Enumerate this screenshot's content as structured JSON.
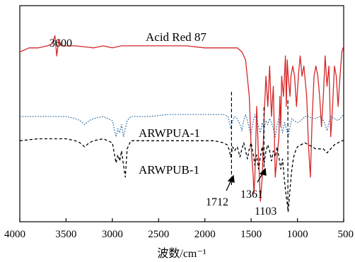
{
  "chart_data": {
    "type": "line",
    "xlabel": "波数/cm⁻¹",
    "xlim": [
      4000,
      500
    ],
    "x_reversed": true,
    "x_ticks": [
      4000,
      3500,
      3000,
      2500,
      2000,
      1500,
      1000,
      500
    ],
    "y_ticks_shown": false,
    "grid": false,
    "series": [
      {
        "name": "Acid Red 87",
        "color": "#d62728",
        "dash": "solid",
        "points": [
          [
            4000,
            82
          ],
          [
            3900,
            84
          ],
          [
            3800,
            84
          ],
          [
            3700,
            85
          ],
          [
            3650,
            86
          ],
          [
            3620,
            90
          ],
          [
            3600,
            80
          ],
          [
            3580,
            88
          ],
          [
            3550,
            85
          ],
          [
            3400,
            85
          ],
          [
            3200,
            84
          ],
          [
            3100,
            85
          ],
          [
            3000,
            84
          ],
          [
            2900,
            85
          ],
          [
            2800,
            85
          ],
          [
            2600,
            85
          ],
          [
            2400,
            85
          ],
          [
            2200,
            85
          ],
          [
            2000,
            84
          ],
          [
            1800,
            84
          ],
          [
            1650,
            84
          ],
          [
            1600,
            82
          ],
          [
            1560,
            78
          ],
          [
            1520,
            60
          ],
          [
            1500,
            35
          ],
          [
            1480,
            22
          ],
          [
            1470,
            12
          ],
          [
            1460,
            20
          ],
          [
            1440,
            55
          ],
          [
            1420,
            30
          ],
          [
            1400,
            8
          ],
          [
            1380,
            20
          ],
          [
            1360,
            50
          ],
          [
            1340,
            70
          ],
          [
            1320,
            55
          ],
          [
            1300,
            75
          ],
          [
            1280,
            50
          ],
          [
            1260,
            65
          ],
          [
            1240,
            20
          ],
          [
            1220,
            30
          ],
          [
            1200,
            40
          ],
          [
            1190,
            60
          ],
          [
            1180,
            45
          ],
          [
            1170,
            70
          ],
          [
            1150,
            60
          ],
          [
            1130,
            80
          ],
          [
            1120,
            55
          ],
          [
            1110,
            78
          ],
          [
            1100,
            70
          ],
          [
            1090,
            65
          ],
          [
            1080,
            60
          ],
          [
            1070,
            70
          ],
          [
            1050,
            75
          ],
          [
            1030,
            70
          ],
          [
            1010,
            55
          ],
          [
            990,
            70
          ],
          [
            970,
            80
          ],
          [
            950,
            70
          ],
          [
            930,
            75
          ],
          [
            900,
            60
          ],
          [
            880,
            35
          ],
          [
            860,
            20
          ],
          [
            840,
            50
          ],
          [
            820,
            70
          ],
          [
            800,
            75
          ],
          [
            780,
            70
          ],
          [
            760,
            60
          ],
          [
            740,
            45
          ],
          [
            720,
            60
          ],
          [
            700,
            80
          ],
          [
            680,
            65
          ],
          [
            660,
            75
          ],
          [
            640,
            40
          ],
          [
            620,
            55
          ],
          [
            600,
            75
          ],
          [
            580,
            70
          ],
          [
            560,
            55
          ],
          [
            540,
            70
          ],
          [
            520,
            82
          ],
          [
            500,
            85
          ]
        ]
      },
      {
        "name": "ARWPUA-1",
        "color": "#2e6ea6",
        "dash": "dotted",
        "points": [
          [
            4000,
            50
          ],
          [
            3800,
            50
          ],
          [
            3600,
            50
          ],
          [
            3500,
            50
          ],
          [
            3400,
            49
          ],
          [
            3350,
            48
          ],
          [
            3300,
            46
          ],
          [
            3250,
            48
          ],
          [
            3200,
            49
          ],
          [
            3100,
            50
          ],
          [
            3050,
            49
          ],
          [
            3000,
            48
          ],
          [
            2980,
            44
          ],
          [
            2960,
            40
          ],
          [
            2940,
            44
          ],
          [
            2920,
            42
          ],
          [
            2900,
            46
          ],
          [
            2880,
            40
          ],
          [
            2860,
            44
          ],
          [
            2840,
            48
          ],
          [
            2800,
            50
          ],
          [
            2600,
            50
          ],
          [
            2400,
            51
          ],
          [
            2200,
            51
          ],
          [
            2000,
            51
          ],
          [
            1900,
            51
          ],
          [
            1800,
            51
          ],
          [
            1750,
            50
          ],
          [
            1720,
            44
          ],
          [
            1700,
            48
          ],
          [
            1680,
            50
          ],
          [
            1650,
            49
          ],
          [
            1620,
            46
          ],
          [
            1600,
            43
          ],
          [
            1580,
            48
          ],
          [
            1560,
            51
          ],
          [
            1540,
            48
          ],
          [
            1520,
            44
          ],
          [
            1500,
            41
          ],
          [
            1480,
            47
          ],
          [
            1460,
            51
          ],
          [
            1440,
            48
          ],
          [
            1420,
            45
          ],
          [
            1400,
            42
          ],
          [
            1380,
            47
          ],
          [
            1360,
            44
          ],
          [
            1340,
            48
          ],
          [
            1320,
            46
          ],
          [
            1300,
            49
          ],
          [
            1280,
            47
          ],
          [
            1260,
            44
          ],
          [
            1240,
            40
          ],
          [
            1220,
            46
          ],
          [
            1200,
            49
          ],
          [
            1180,
            46
          ],
          [
            1160,
            42
          ],
          [
            1140,
            47
          ],
          [
            1120,
            44
          ],
          [
            1100,
            40
          ],
          [
            1080,
            45
          ],
          [
            1060,
            49
          ],
          [
            1040,
            48
          ],
          [
            1000,
            47
          ],
          [
            960,
            48
          ],
          [
            920,
            50
          ],
          [
            880,
            50
          ],
          [
            840,
            49
          ],
          [
            800,
            49
          ],
          [
            760,
            50
          ],
          [
            720,
            48
          ],
          [
            700,
            46
          ],
          [
            680,
            43
          ],
          [
            660,
            47
          ],
          [
            640,
            50
          ],
          [
            600,
            49
          ],
          [
            560,
            48
          ],
          [
            520,
            50
          ],
          [
            500,
            51
          ]
        ]
      },
      {
        "name": "ARWPUB-1",
        "color": "#000000",
        "dash": "dashed",
        "points": [
          [
            4000,
            38
          ],
          [
            3800,
            39
          ],
          [
            3600,
            39
          ],
          [
            3500,
            39
          ],
          [
            3400,
            38
          ],
          [
            3350,
            37
          ],
          [
            3300,
            35
          ],
          [
            3250,
            37
          ],
          [
            3200,
            38
          ],
          [
            3100,
            39
          ],
          [
            3050,
            38
          ],
          [
            3000,
            37
          ],
          [
            2980,
            32
          ],
          [
            2960,
            27
          ],
          [
            2940,
            31
          ],
          [
            2920,
            28
          ],
          [
            2900,
            33
          ],
          [
            2880,
            26
          ],
          [
            2860,
            20
          ],
          [
            2840,
            34
          ],
          [
            2800,
            38
          ],
          [
            2600,
            38
          ],
          [
            2400,
            38
          ],
          [
            2200,
            38
          ],
          [
            2000,
            38
          ],
          [
            1900,
            38
          ],
          [
            1800,
            37
          ],
          [
            1760,
            36
          ],
          [
            1740,
            34
          ],
          [
            1720,
            30
          ],
          [
            1700,
            35
          ],
          [
            1680,
            33
          ],
          [
            1650,
            35
          ],
          [
            1620,
            30
          ],
          [
            1600,
            34
          ],
          [
            1580,
            37
          ],
          [
            1560,
            33
          ],
          [
            1540,
            29
          ],
          [
            1520,
            34
          ],
          [
            1500,
            37
          ],
          [
            1480,
            32
          ],
          [
            1460,
            26
          ],
          [
            1440,
            31
          ],
          [
            1420,
            24
          ],
          [
            1400,
            30
          ],
          [
            1380,
            35
          ],
          [
            1360,
            27
          ],
          [
            1340,
            33
          ],
          [
            1320,
            36
          ],
          [
            1300,
            33
          ],
          [
            1280,
            28
          ],
          [
            1260,
            33
          ],
          [
            1240,
            30
          ],
          [
            1220,
            35
          ],
          [
            1200,
            30
          ],
          [
            1180,
            24
          ],
          [
            1160,
            29
          ],
          [
            1140,
            18
          ],
          [
            1120,
            10
          ],
          [
            1110,
            7
          ],
          [
            1100,
            3
          ],
          [
            1090,
            8
          ],
          [
            1080,
            14
          ],
          [
            1060,
            24
          ],
          [
            1040,
            30
          ],
          [
            1020,
            33
          ],
          [
            1000,
            35
          ],
          [
            960,
            36
          ],
          [
            920,
            37
          ],
          [
            880,
            36
          ],
          [
            840,
            35
          ],
          [
            800,
            34
          ],
          [
            760,
            34
          ],
          [
            720,
            34
          ],
          [
            700,
            33
          ],
          [
            680,
            32
          ],
          [
            660,
            33
          ],
          [
            640,
            34
          ],
          [
            600,
            36
          ],
          [
            560,
            37
          ],
          [
            520,
            38
          ],
          [
            500,
            38
          ]
        ]
      }
    ],
    "series_labels": [
      "Acid Red 87",
      "ARWPUA-1",
      "ARWPUB-1"
    ],
    "annotations": {
      "peak_3600": "3600",
      "peak_1712": "1712",
      "peak_1361": "1361",
      "peak_1103": "1103"
    },
    "reference_lines_x": [
      1712,
      1361,
      1103
    ]
  }
}
